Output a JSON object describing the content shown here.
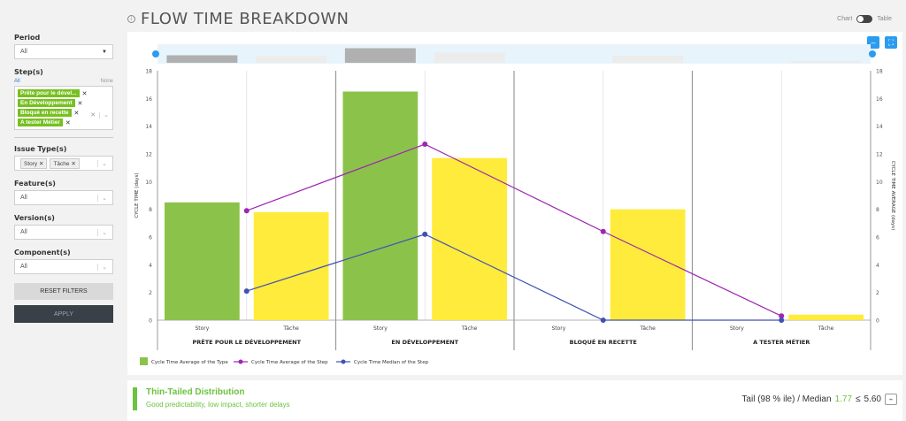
{
  "header": {
    "title": "FLOW TIME BREAKDOWN",
    "toggle_chart": "Chart",
    "toggle_table": "Table"
  },
  "filters": {
    "period": {
      "label": "Period",
      "value": "All"
    },
    "steps": {
      "label": "Step(s)",
      "all": "All",
      "none": "None",
      "tags": [
        "Prête pour le dével...",
        "En Développement",
        "Bloqué en recette",
        "A tester Métier"
      ]
    },
    "issue_types": {
      "label": "Issue Type(s)",
      "tags": [
        "Story",
        "Tâche"
      ]
    },
    "feature": {
      "label": "Feature(s)",
      "value": "All"
    },
    "version": {
      "label": "Version(s)",
      "value": "All"
    },
    "component": {
      "label": "Component(s)",
      "value": "All"
    },
    "reset_label": "RESET FILTERS",
    "apply_label": "APPLY"
  },
  "chart_data": {
    "type": "bar",
    "ylabel_left": "CYCLE TIME (days)",
    "ylabel_right": "CYCLE TIME AVERAGE (days)",
    "ylim": [
      0,
      18
    ],
    "yticks": [
      0,
      2,
      4,
      6,
      8,
      10,
      12,
      14,
      16,
      18
    ],
    "steps": [
      "PRÊTE POUR LE DÉVELOPPEMENT",
      "EN DÉVELOPPEMENT",
      "BLOQUÉ EN RECETTE",
      "A TESTER MÉTIER"
    ],
    "types": [
      "Story",
      "Tâche"
    ],
    "bars": [
      [
        8.5,
        7.8
      ],
      [
        16.5,
        11.7
      ],
      [
        0,
        8.0
      ],
      [
        0,
        0.4
      ]
    ],
    "bar_colors": {
      "Story": "#8bc34a",
      "Tâche": "#ffeb3b"
    },
    "line_avg": [
      7.9,
      12.7,
      6.4,
      0.3
    ],
    "line_median": [
      2.1,
      6.2,
      0,
      0
    ],
    "legend": [
      "Cycle Time Average of the Type",
      "Cycle Time Average of the Step",
      "Cycle Time Median of the Step"
    ],
    "line_colors": {
      "avg": "#9c27b0",
      "median": "#3f51b5"
    }
  },
  "distribution": {
    "title": "Thin-Tailed Distribution",
    "subtitle": "Good predictability, low impact, shorter delays",
    "tail_label": "Tail (98 % ile) / Median",
    "tail_value": "1.77",
    "tail_op": "≤",
    "tail_threshold": "5.60"
  }
}
